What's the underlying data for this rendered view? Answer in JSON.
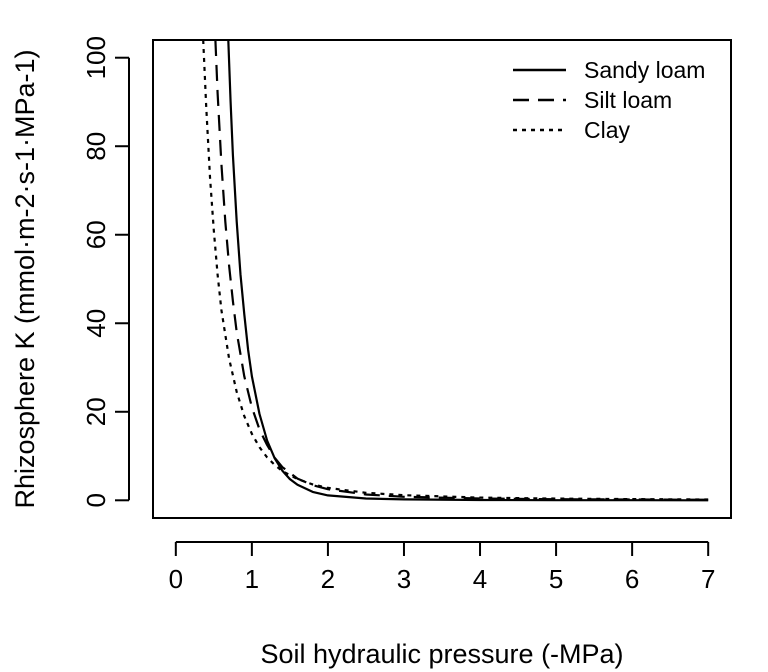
{
  "chart_data": {
    "type": "line",
    "title": "",
    "xlabel": "Soil hydraulic pressure (-MPa)",
    "ylabel": "Rhizosphere K (mmol·m-2·s-1·MPa-1)",
    "xlim": [
      -0.3,
      7.3
    ],
    "ylim": [
      -4,
      104
    ],
    "x_ticks": [
      0,
      1,
      2,
      3,
      4,
      5,
      6,
      7
    ],
    "x_tick_labels": [
      "0",
      "1",
      "2",
      "3",
      "4",
      "5",
      "6",
      "7"
    ],
    "y_ticks": [
      0,
      20,
      40,
      60,
      80,
      100
    ],
    "y_tick_labels": [
      "0",
      "20",
      "40",
      "60",
      "80",
      "100"
    ],
    "grid": false,
    "legend_position": "top-right",
    "series": [
      {
        "name": "Sandy loam",
        "line_style": "solid",
        "color": "#000000",
        "x": [
          0.69,
          0.72,
          0.75,
          0.8,
          0.85,
          0.9,
          0.95,
          1.0,
          1.1,
          1.2,
          1.3,
          1.4,
          1.5,
          1.6,
          1.8,
          2.0,
          2.5,
          3.0,
          4.0,
          5.0,
          6.0,
          7.0
        ],
        "y": [
          104,
          90,
          78,
          63,
          51,
          42,
          34,
          28,
          19.5,
          13.5,
          9.5,
          6.7,
          4.8,
          3.5,
          1.9,
          1.1,
          0.4,
          0.2,
          0.07,
          0.03,
          0.02,
          0.01
        ]
      },
      {
        "name": "Silt loam",
        "line_style": "dashed",
        "color": "#000000",
        "x": [
          0.52,
          0.55,
          0.6,
          0.65,
          0.7,
          0.75,
          0.8,
          0.9,
          1.0,
          1.1,
          1.2,
          1.3,
          1.4,
          1.6,
          1.8,
          2.0,
          2.5,
          3.0,
          4.0,
          5.0,
          6.0,
          7.0
        ],
        "y": [
          104,
          92,
          76,
          63,
          53,
          45,
          38,
          28,
          21,
          16,
          12.5,
          9.6,
          7.5,
          4.9,
          3.4,
          2.5,
          1.3,
          0.8,
          0.4,
          0.25,
          0.17,
          0.12
        ]
      },
      {
        "name": "Clay",
        "line_style": "dotted",
        "color": "#000000",
        "x": [
          0.36,
          0.4,
          0.45,
          0.5,
          0.55,
          0.6,
          0.7,
          0.8,
          0.9,
          1.0,
          1.1,
          1.2,
          1.3,
          1.4,
          1.6,
          1.8,
          2.0,
          2.5,
          3.0,
          4.0,
          5.0,
          6.0,
          7.0
        ],
        "y": [
          104,
          89,
          73,
          61,
          51,
          43,
          32,
          24.5,
          19,
          15,
          12,
          9.7,
          8,
          6.6,
          4.8,
          3.6,
          2.8,
          1.7,
          1.15,
          0.6,
          0.38,
          0.26,
          0.19
        ]
      }
    ]
  }
}
